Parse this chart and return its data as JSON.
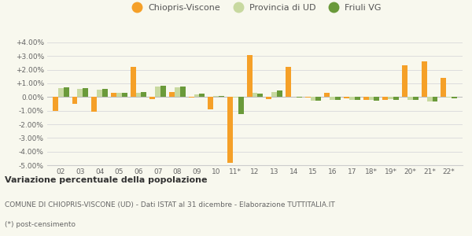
{
  "categories": [
    "02",
    "03",
    "04",
    "05",
    "06",
    "07",
    "08",
    "09",
    "10",
    "11*",
    "12",
    "13",
    "14",
    "15",
    "16",
    "17",
    "18*",
    "19*",
    "20*",
    "21*",
    "22*"
  ],
  "chiopris": [
    -1.0,
    -0.5,
    -1.1,
    0.3,
    2.2,
    -0.15,
    0.35,
    -0.05,
    -0.9,
    -4.8,
    3.05,
    -0.15,
    2.2,
    -0.05,
    0.3,
    -0.1,
    -0.2,
    -0.2,
    2.3,
    2.6,
    1.4
  ],
  "provincia_ud": [
    0.65,
    0.6,
    0.55,
    0.3,
    0.3,
    0.75,
    0.7,
    0.2,
    0.1,
    -0.05,
    0.3,
    0.35,
    0.0,
    -0.25,
    -0.2,
    -0.2,
    -0.2,
    -0.15,
    -0.2,
    -0.3,
    -0.05
  ],
  "friuli_vg": [
    0.7,
    0.65,
    0.6,
    0.3,
    0.35,
    0.8,
    0.75,
    0.25,
    0.1,
    -1.25,
    0.25,
    0.5,
    -0.05,
    -0.25,
    -0.2,
    -0.2,
    -0.25,
    -0.2,
    -0.2,
    -0.3,
    -0.1
  ],
  "color_chiopris": "#f5a028",
  "color_provincia": "#c8d9a0",
  "color_friuli": "#6a9a3a",
  "ylim": [
    -5.0,
    4.0
  ],
  "yticks": [
    -5.0,
    -4.0,
    -3.0,
    -2.0,
    -1.0,
    0.0,
    1.0,
    2.0,
    3.0,
    4.0
  ],
  "title_bold": "Variazione percentuale della popolazione",
  "subtitle1": "COMUNE DI CHIOPRIS-VISCONE (UD) - Dati ISTAT al 31 dicembre - Elaborazione TUTTITALIA.IT",
  "subtitle2": "(*) post-censimento",
  "legend_labels": [
    "Chiopris-Viscone",
    "Provincia di UD",
    "Friuli VG"
  ],
  "background_color": "#f8f8ee",
  "bar_width": 0.28
}
